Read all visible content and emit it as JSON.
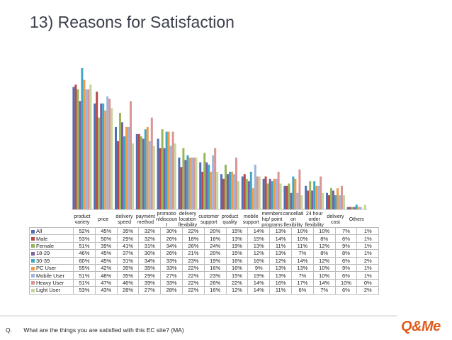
{
  "page": {
    "title": "13) Reasons for Satisfaction"
  },
  "question": {
    "prefix": "Q.",
    "text": "What are the things you are satisfied with this EC site? (MA)"
  },
  "logo": {
    "text": "Q&Me"
  },
  "chart_data": {
    "type": "bar",
    "title": "13) Reasons for Satisfaction",
    "categories": [
      "product variety",
      "price",
      "delivery speed",
      "payment method",
      "promotion/discount",
      "delivery location flexibility",
      "customer support",
      "product quality",
      "mobile support",
      "membership/ point programs",
      "cancellation flexibility",
      "24 hour order flexibility",
      "delivery cost",
      "Others"
    ],
    "category_labels": [
      [
        "product",
        "variety"
      ],
      [
        "price"
      ],
      [
        "delivery",
        "speed"
      ],
      [
        "payment",
        "method"
      ],
      [
        "promotio",
        "n/discoun",
        "t"
      ],
      [
        "delivery",
        "location",
        "flexibility"
      ],
      [
        "customer",
        "support"
      ],
      [
        "product",
        "quality"
      ],
      [
        "mobile",
        "support"
      ],
      [
        "members",
        "hip/ point",
        "programs"
      ],
      [
        "cancellati",
        "on",
        "flexibility"
      ],
      [
        "24 hour",
        "order",
        "flexibility"
      ],
      [
        "delivery",
        "cost"
      ],
      [
        "Others"
      ]
    ],
    "ylim": [
      0,
      60
    ],
    "unit": "%",
    "series": [
      {
        "name": "All",
        "color": "#4f6fb5",
        "values": [
          52,
          45,
          35,
          32,
          30,
          22,
          20,
          15,
          14,
          13,
          10,
          10,
          7,
          1
        ]
      },
      {
        "name": "Male",
        "color": "#b94a48",
        "values": [
          53,
          50,
          29,
          32,
          26,
          18,
          16,
          13,
          15,
          14,
          10,
          8,
          6,
          1
        ]
      },
      {
        "name": "Female",
        "color": "#95b65a",
        "values": [
          51,
          39,
          41,
          31,
          34,
          26,
          24,
          19,
          13,
          11,
          11,
          12,
          9,
          1
        ]
      },
      {
        "name": "18-29",
        "color": "#7b62a3",
        "values": [
          46,
          45,
          37,
          30,
          26,
          21,
          20,
          15,
          12,
          13,
          7,
          8,
          8,
          1
        ]
      },
      {
        "name": "30-39",
        "color": "#3fa8c4",
        "values": [
          60,
          45,
          31,
          34,
          33,
          23,
          19,
          16,
          16,
          12,
          14,
          12,
          6,
          2
        ]
      },
      {
        "name": "PC User",
        "color": "#f29b48",
        "values": [
          55,
          42,
          35,
          35,
          33,
          22,
          16,
          16,
          9,
          13,
          13,
          10,
          9,
          1
        ]
      },
      {
        "name": "Mobile User",
        "color": "#9fb5de",
        "values": [
          51,
          48,
          35,
          29,
          27,
          22,
          23,
          15,
          19,
          13,
          7,
          10,
          6,
          1
        ]
      },
      {
        "name": "Heavy User",
        "color": "#d99694",
        "values": [
          51,
          47,
          46,
          39,
          33,
          22,
          26,
          22,
          14,
          16,
          17,
          14,
          10,
          0
        ]
      },
      {
        "name": "Light User",
        "color": "#c3d69b",
        "values": [
          53,
          43,
          28,
          27,
          28,
          22,
          16,
          12,
          14,
          11,
          6,
          7,
          6,
          2
        ]
      }
    ],
    "table": {
      "rows": [
        {
          "series": "All",
          "cells": [
            "52%",
            "45%",
            "35%",
            "32%",
            "30%",
            "22%",
            "20%",
            "15%",
            "14%",
            "13%",
            "10%",
            "10%",
            "7%",
            "1%"
          ]
        },
        {
          "series": "Male",
          "cells": [
            "53%",
            "50%",
            "29%",
            "32%",
            "26%",
            "18%",
            "16%",
            "13%",
            "15%",
            "14%",
            "10%",
            "8%",
            "6%",
            "1%"
          ]
        },
        {
          "series": "Female",
          "cells": [
            "51%",
            "39%",
            "41%",
            "31%",
            "34%",
            "26%",
            "24%",
            "19%",
            "13%",
            "11%",
            "11%",
            "12%",
            "9%",
            "1%"
          ]
        },
        {
          "series": "18-29",
          "cells": [
            "46%",
            "45%",
            "37%",
            "30%",
            "26%",
            "21%",
            "20%",
            "15%",
            "12%",
            "13%",
            "7%",
            "8%",
            "8%",
            "1%"
          ]
        },
        {
          "series": "30-39",
          "cells": [
            "60%",
            "45%",
            "31%",
            "34%",
            "33%",
            "23%",
            "19%",
            "16%",
            "16%",
            "12%",
            "14%",
            "12%",
            "6%",
            "2%"
          ]
        },
        {
          "series": "PC User",
          "cells": [
            "55%",
            "42%",
            "35%",
            "35%",
            "33%",
            "22%",
            "16%",
            "16%",
            "9%",
            "13%",
            "13%",
            "10%",
            "9%",
            "1%"
          ]
        },
        {
          "series": "Mobile User",
          "cells": [
            "51%",
            "48%",
            "35%",
            "29%",
            "27%",
            "22%",
            "23%",
            "15%",
            "19%",
            "13%",
            "7%",
            "10%",
            "6%",
            "1%"
          ]
        },
        {
          "series": "Heavy User",
          "cells": [
            "51%",
            "47%",
            "46%",
            "39%",
            "33%",
            "22%",
            "26%",
            "22%",
            "14%",
            "16%",
            "17%",
            "14%",
            "10%",
            "0%"
          ]
        },
        {
          "series": "Light User",
          "cells": [
            "53%",
            "43%",
            "28%",
            "27%",
            "28%",
            "22%",
            "16%",
            "12%",
            "14%",
            "11%",
            "6%",
            "7%",
            "6%",
            "2%"
          ]
        }
      ]
    }
  }
}
